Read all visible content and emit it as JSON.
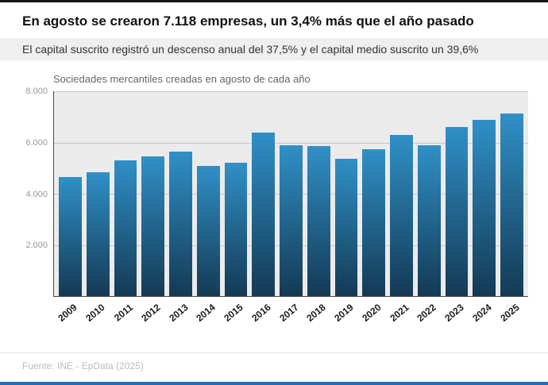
{
  "header": {
    "title": "En agosto se crearon 7.118 empresas, un 3,4% más que el año pasado",
    "subtitle": "El capital suscrito registró un descenso anual del 37,5% y el capital medio suscrito un 39,6%"
  },
  "chart_data": {
    "type": "bar",
    "title": "Sociedades mercantiles creadas en agosto de cada año",
    "categories": [
      "2009",
      "2010",
      "2011",
      "2012",
      "2013",
      "2014",
      "2015",
      "2016",
      "2017",
      "2018",
      "2019",
      "2020",
      "2021",
      "2022",
      "2023",
      "2024",
      "2025"
    ],
    "values": [
      4650,
      4850,
      5300,
      5450,
      5650,
      5100,
      5200,
      6400,
      5900,
      5850,
      5350,
      5750,
      6300,
      5900,
      6600,
      6885,
      7118
    ],
    "xlabel": "",
    "ylabel": "",
    "ylim": [
      0,
      8000
    ],
    "yticks": [
      2000,
      4000,
      6000,
      8000
    ],
    "ytick_labels": [
      "2.000",
      "4.000",
      "6.000",
      "8.000"
    ],
    "grid": "horizontal",
    "legend": "none",
    "plot_background": "#ebebeb",
    "bar_color_top": "#3090c7",
    "bar_color_bottom": "#14python3a55"
  },
  "footer": {
    "source": "Fuente: INE - EpData (2025)"
  },
  "accents": {
    "top_line_color": "#151515",
    "bottom_line_color": "#1d6fb8"
  }
}
